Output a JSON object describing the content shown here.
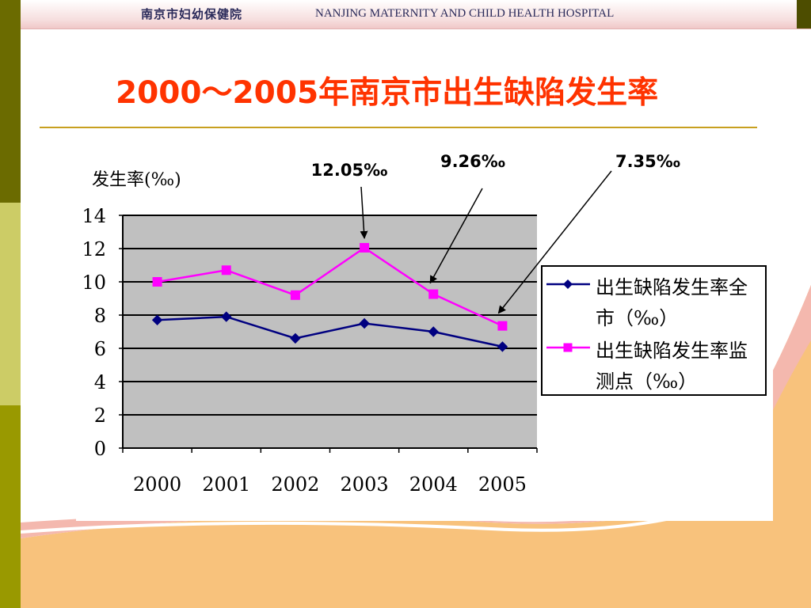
{
  "header": {
    "logo_text": "南京市妇幼保健院",
    "hospital_name": "NANJING MATERNITY AND CHILD HEALTH HOSPITAL"
  },
  "title": "2000～2005年南京市出生缺陷发生率",
  "chart_data": {
    "type": "line",
    "ylabel": "发生率(‰)",
    "xlabel": "",
    "ylim": [
      0,
      14
    ],
    "yticks": [
      0,
      2,
      4,
      6,
      8,
      10,
      12,
      14
    ],
    "categories": [
      "2000",
      "2001",
      "2002",
      "2003",
      "2004",
      "2005"
    ],
    "grid": true,
    "legend_position": "right",
    "series": [
      {
        "name": "出生缺陷发生率全市（‰）",
        "name_lines": [
          "出生缺陷发生率全",
          "市（‰）"
        ],
        "values": [
          7.7,
          7.9,
          6.6,
          7.5,
          7.0,
          6.1
        ],
        "color": "#000080",
        "marker": "diamond"
      },
      {
        "name": "出生缺陷发生率监测点（‰）",
        "name_lines": [
          "出生缺陷发生率监",
          "测点（‰）"
        ],
        "values": [
          10.0,
          10.7,
          9.2,
          12.05,
          9.26,
          7.35
        ],
        "color": "#ff00ff",
        "marker": "square"
      }
    ],
    "annotations": [
      {
        "text": "12.05‰",
        "series": 1,
        "index": 3
      },
      {
        "text": "9.26‰",
        "series": 1,
        "index": 4
      },
      {
        "text": "7.35‰",
        "series": 1,
        "index": 5
      }
    ]
  }
}
